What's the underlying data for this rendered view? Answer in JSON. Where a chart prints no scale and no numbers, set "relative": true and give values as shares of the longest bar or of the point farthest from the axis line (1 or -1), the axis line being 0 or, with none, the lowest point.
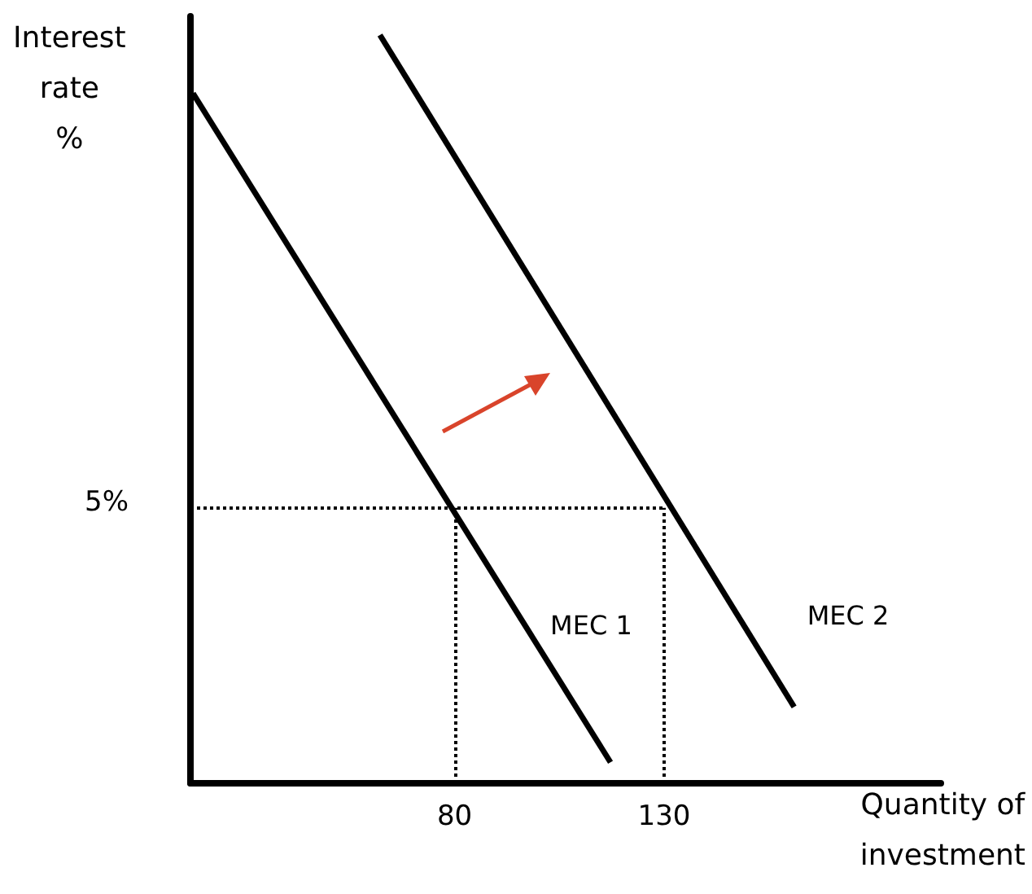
{
  "chart_data": {
    "type": "line",
    "relative": true,
    "xlabel": "Quantity of\ninvestment",
    "ylabel": "Interest\nrate\n%",
    "xlim": [
      17,
      196
    ],
    "xticks": [
      80,
      130
    ],
    "annotations": [
      "5%"
    ],
    "series": [
      {
        "name": "MEC 1",
        "color": "#000000",
        "x": [
          17.6,
          117.2
        ],
        "values": [
          0.922,
          0.028
        ]
      },
      {
        "name": "MEC 2",
        "color": "#000000",
        "x": [
          62.2,
          161.0
        ],
        "values": [
          1,
          0.102
        ]
      }
    ],
    "ref_lines": [
      {
        "axis": "y",
        "value": 0.368,
        "line_style": "dotted"
      },
      {
        "axis": "x",
        "value": 80,
        "line_style": "dotted"
      },
      {
        "axis": "x",
        "value": 130,
        "line_style": "dotted"
      }
    ],
    "grid": false,
    "marker": "none",
    "line_style": "solid"
  }
}
